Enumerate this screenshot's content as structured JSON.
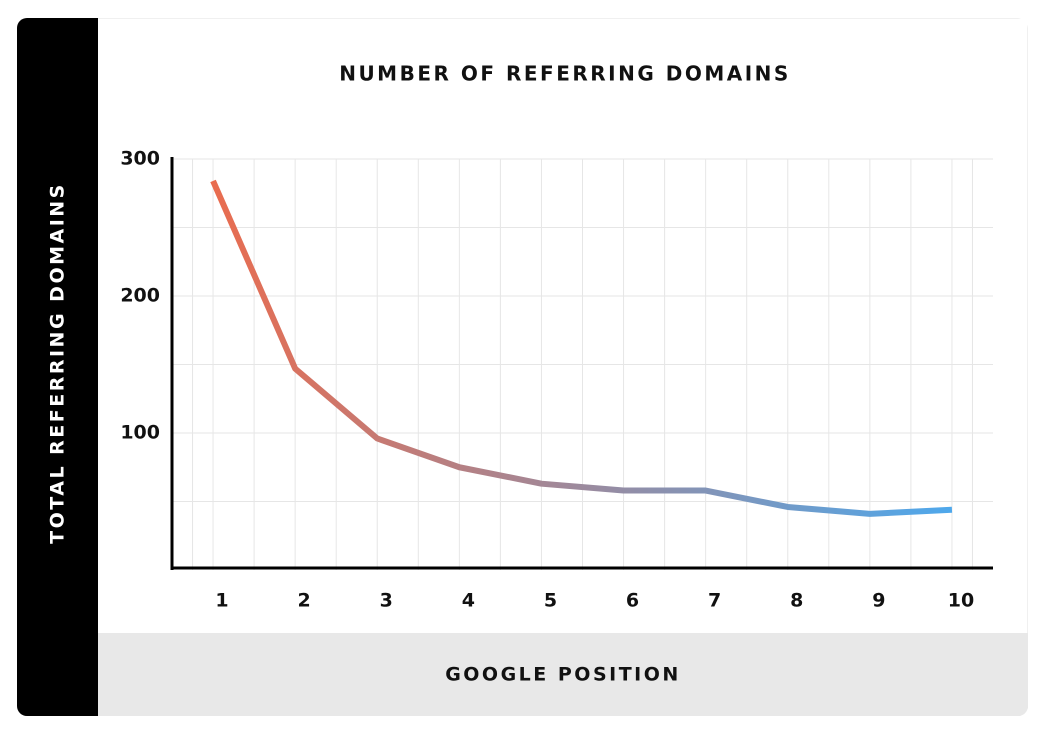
{
  "chart_data": {
    "type": "line",
    "title": "NUMBER OF REFERRING DOMAINS",
    "x_label": "GOOGLE POSITION",
    "y_label": "TOTAL REFERRING DOMAINS",
    "x": [
      1,
      2,
      3,
      4,
      5,
      6,
      7,
      8,
      9,
      10
    ],
    "xlim": [
      0.5,
      10.5
    ],
    "xticks": [
      1,
      2,
      3,
      4,
      5,
      6,
      7,
      8,
      9,
      10
    ],
    "ylim": [
      0,
      300
    ],
    "yticks": [
      100,
      200,
      300
    ],
    "grid": true,
    "series": [
      {
        "colors": [
          "#e96c4f",
          "#4ea8ec"
        ],
        "values": [
          284,
          147,
          96,
          75,
          63,
          58,
          58,
          46,
          41,
          44
        ]
      }
    ]
  }
}
